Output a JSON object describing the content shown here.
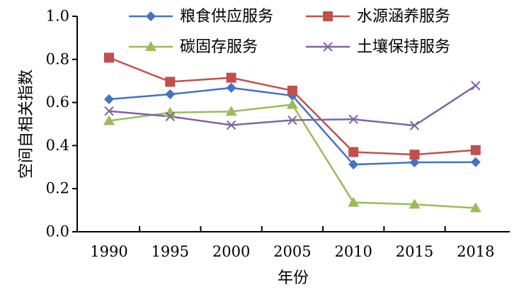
{
  "chart_data": {
    "type": "line",
    "xlabel": "年份",
    "ylabel": "空间自相关指数",
    "categories": [
      "1990",
      "1995",
      "2000",
      "2005",
      "2010",
      "2015",
      "2018"
    ],
    "ylim": [
      0.0,
      1.0
    ],
    "yticks": [
      "0.0",
      "0.2",
      "0.4",
      "0.6",
      "0.8",
      "1.0"
    ],
    "grid": false,
    "legend_position": "top",
    "series": [
      {
        "name": "粮食供应服务",
        "color": "#4472C4",
        "marker": "diamond",
        "values": [
          0.615,
          0.638,
          0.668,
          0.632,
          0.312,
          0.322,
          0.323
        ]
      },
      {
        "name": "水源涵养服务",
        "color": "#C0504D",
        "marker": "square",
        "values": [
          0.808,
          0.696,
          0.715,
          0.655,
          0.37,
          0.358,
          0.379
        ]
      },
      {
        "name": "碳固存服务",
        "color": "#9BBB59",
        "marker": "triangle",
        "values": [
          0.515,
          0.553,
          0.558,
          0.59,
          0.136,
          0.127,
          0.11
        ]
      },
      {
        "name": "土壤保持服务",
        "color": "#8064A2",
        "marker": "x",
        "values": [
          0.56,
          0.535,
          0.495,
          0.518,
          0.522,
          0.493,
          0.678
        ]
      }
    ]
  }
}
